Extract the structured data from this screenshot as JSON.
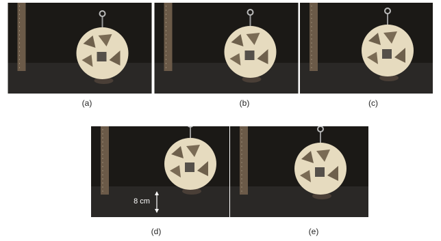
{
  "panels": [
    {
      "label": "(a)"
    },
    {
      "label": "(b)"
    },
    {
      "label": "(c)"
    },
    {
      "label": "(d)",
      "annotation": "8 cm"
    },
    {
      "label": "(e)"
    }
  ]
}
